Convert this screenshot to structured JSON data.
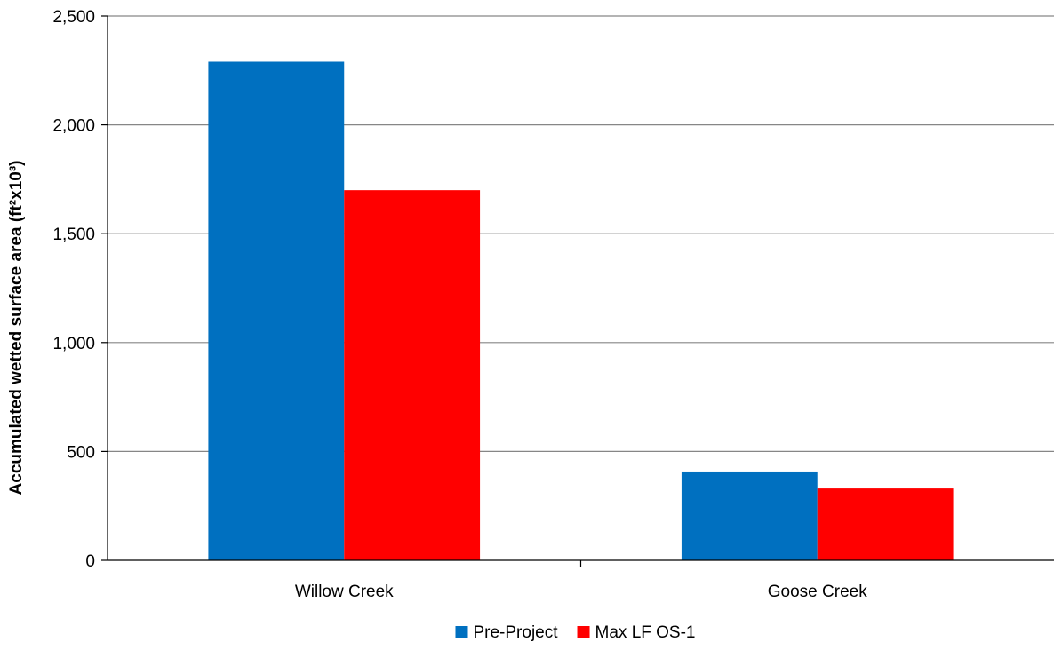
{
  "chart_data": {
    "type": "bar",
    "title": "",
    "xlabel": "",
    "ylabel": "Accumulated wetted surface area (ft²x10³)",
    "categories": [
      "Willow Creek",
      "Goose Creek"
    ],
    "series": [
      {
        "name": "Pre-Project",
        "color": "#0070c0",
        "values": [
          2290,
          408
        ]
      },
      {
        "name": "Max LF OS-1",
        "color": "#ff0000",
        "values": [
          1700,
          330
        ]
      }
    ],
    "ylim": [
      0,
      2500
    ],
    "yticks": [
      0,
      500,
      1000,
      1500,
      2000,
      2500
    ],
    "ytick_labels": [
      "0",
      "500",
      "1,000",
      "1,500",
      "2,000",
      "2,500"
    ],
    "grid": true,
    "legend_position": "bottom-center"
  }
}
